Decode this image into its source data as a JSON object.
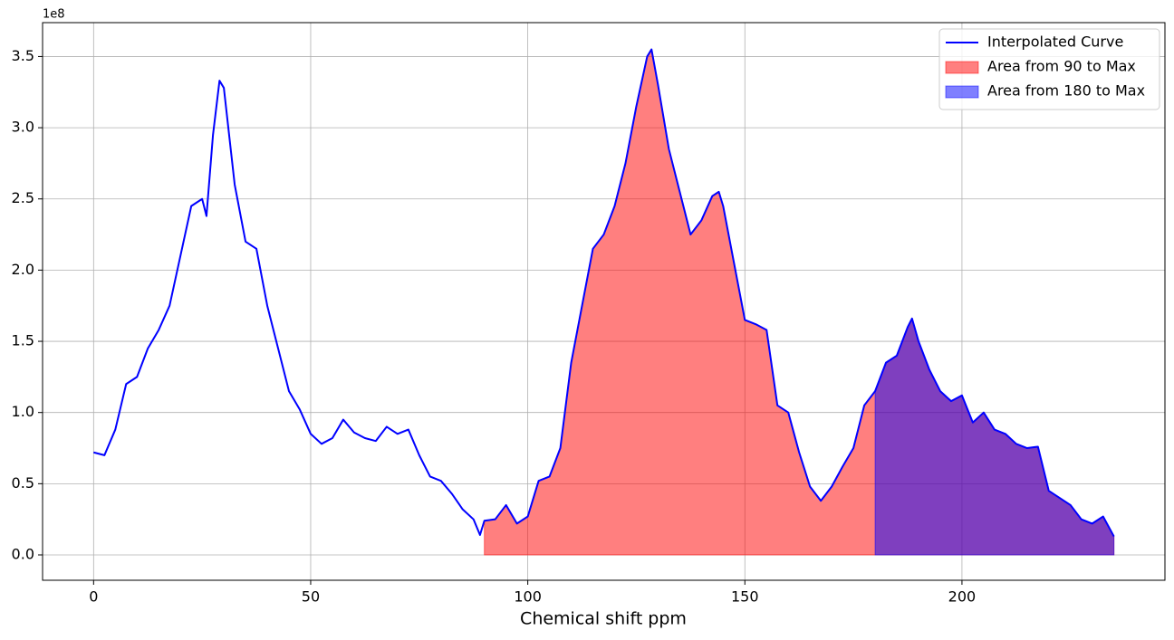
{
  "chart_data": {
    "type": "line",
    "xlabel": "Chemical shift ppm",
    "y_offset_label": "1e8",
    "xlim": [
      -11.75,
      246.75
    ],
    "ylim": [
      -17800000,
      373800000
    ],
    "xticks": [
      0,
      50,
      100,
      150,
      200
    ],
    "yticks": [
      {
        "value": 0,
        "label": "0.0"
      },
      {
        "value": 50000000,
        "label": "0.5"
      },
      {
        "value": 100000000,
        "label": "1.0"
      },
      {
        "value": 150000000,
        "label": "1.5"
      },
      {
        "value": 200000000,
        "label": "2.0"
      },
      {
        "value": 250000000,
        "label": "2.5"
      },
      {
        "value": 300000000,
        "label": "3.0"
      },
      {
        "value": 350000000,
        "label": "3.5"
      }
    ],
    "grid": true,
    "legend": "upper right",
    "series": [
      {
        "name": "Interpolated Curve",
        "color": "#0000ff",
        "x": [
          0,
          2.5,
          5,
          7.5,
          10,
          12.5,
          15,
          17.5,
          20,
          22.5,
          25,
          26,
          27.5,
          29,
          30,
          32.5,
          35,
          37.5,
          40,
          42.5,
          45,
          47.5,
          50,
          52.5,
          55,
          57.5,
          60,
          62.5,
          65,
          67.5,
          70,
          72.5,
          75,
          77.5,
          80,
          82.5,
          85,
          87.5,
          89,
          90,
          92.5,
          95,
          97.5,
          100,
          102.5,
          105,
          107.5,
          110,
          112.5,
          115,
          117.5,
          120,
          122.5,
          125,
          127.5,
          128.5,
          130,
          132.5,
          135,
          137.5,
          140,
          142.5,
          144,
          145,
          147.5,
          150,
          152.5,
          155,
          157.5,
          160,
          162.5,
          165,
          167.5,
          170,
          172.5,
          175,
          177.5,
          180,
          182.5,
          185,
          187.5,
          188.5,
          190,
          192.5,
          195,
          197.5,
          200,
          202.5,
          205,
          207.5,
          210,
          212.5,
          215,
          217.5,
          220,
          222.5,
          225,
          227.5,
          230,
          232.5,
          235
        ],
        "values": [
          72000000,
          70000000,
          88000000,
          120000000,
          125000000,
          145000000,
          158000000,
          175000000,
          210000000,
          245000000,
          250000000,
          238000000,
          295000000,
          333000000,
          328000000,
          260000000,
          220000000,
          215000000,
          175000000,
          145000000,
          115000000,
          102000000,
          85000000,
          78000000,
          82000000,
          95000000,
          86000000,
          82000000,
          80000000,
          90000000,
          85000000,
          88000000,
          70000000,
          55000000,
          52000000,
          43000000,
          32000000,
          25000000,
          14000000,
          24000000,
          25000000,
          35000000,
          22000000,
          27000000,
          52000000,
          55000000,
          75000000,
          135000000,
          175000000,
          215000000,
          225000000,
          245000000,
          275000000,
          315000000,
          350000000,
          355000000,
          330000000,
          285000000,
          255000000,
          225000000,
          235000000,
          252000000,
          255000000,
          245000000,
          205000000,
          165000000,
          162000000,
          158000000,
          105000000,
          100000000,
          72000000,
          48000000,
          38000000,
          48000000,
          62000000,
          75000000,
          105000000,
          115000000,
          135000000,
          140000000,
          160000000,
          166000000,
          150000000,
          130000000,
          115000000,
          108000000,
          112000000,
          93000000,
          100000000,
          88000000,
          85000000,
          78000000,
          75000000,
          76000000,
          45000000,
          40000000,
          35000000,
          25000000,
          22000000,
          27000000,
          13000000
        ]
      }
    ],
    "areas": [
      {
        "name": "Area from 90 to Max",
        "color": "#ff0000",
        "from": 90
      },
      {
        "name": "Area from 180 to Max",
        "color": "#0000ff",
        "from": 180
      }
    ]
  }
}
